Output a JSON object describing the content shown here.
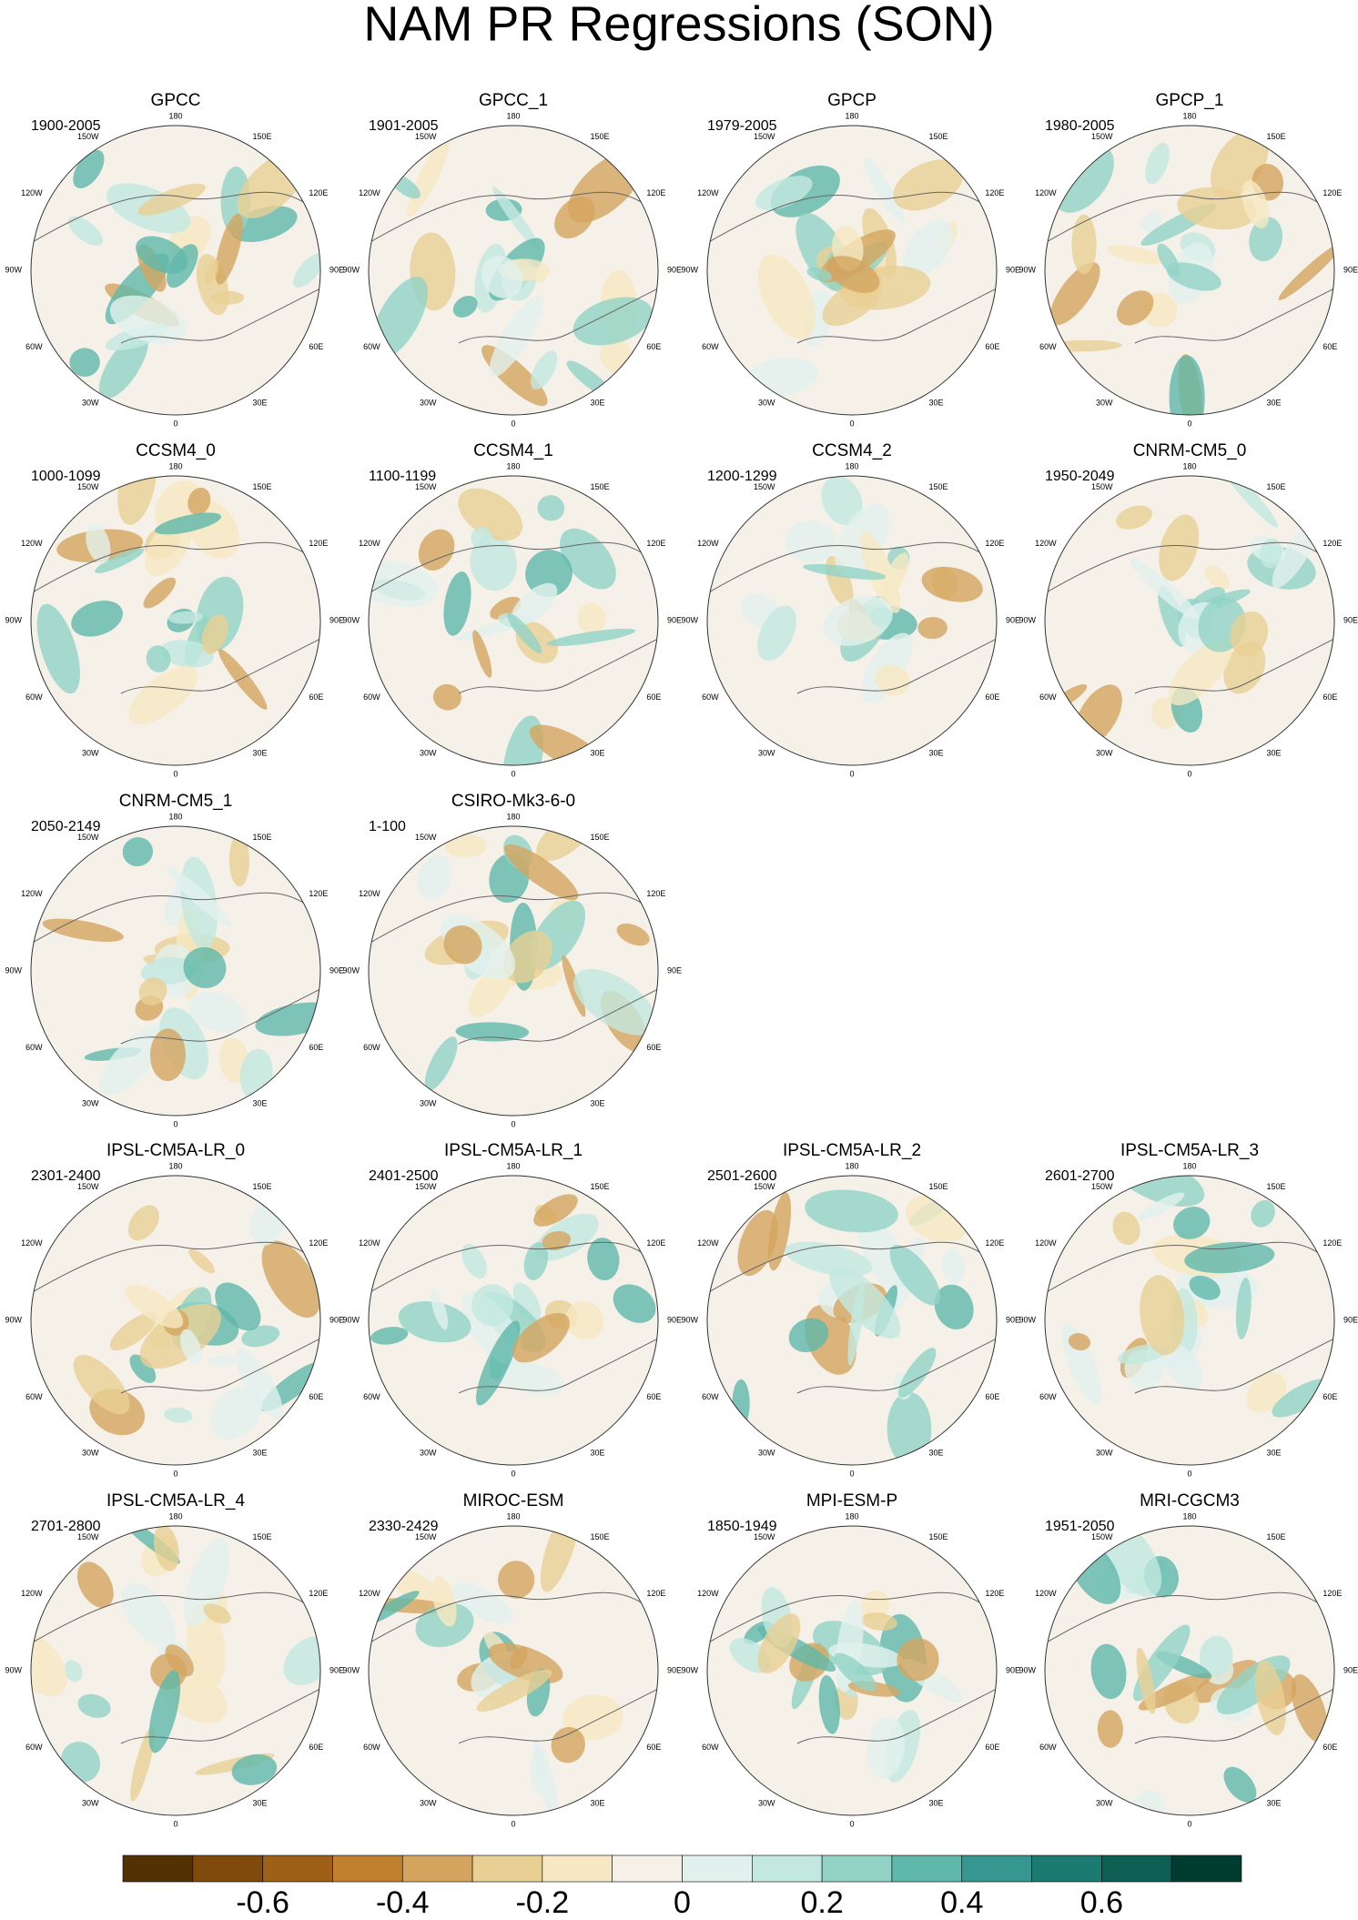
{
  "title": "NAM PR Regressions (SON)",
  "panels": [
    {
      "title": "GPCC",
      "period": "1900-2005"
    },
    {
      "title": "GPCC_1",
      "period": "1901-2005"
    },
    {
      "title": "GPCP",
      "period": "1979-2005"
    },
    {
      "title": "GPCP_1",
      "period": "1980-2005"
    },
    {
      "title": "CCSM4_0",
      "period": "1000-1099"
    },
    {
      "title": "CCSM4_1",
      "period": "1100-1199"
    },
    {
      "title": "CCSM4_2",
      "period": "1200-1299"
    },
    {
      "title": "CNRM-CM5_0",
      "period": "1950-2049"
    },
    {
      "title": "CNRM-CM5_1",
      "period": "2050-2149"
    },
    {
      "title": "CSIRO-Mk3-6-0",
      "period": "1-100"
    },
    {
      "title": "IPSL-CM5A-LR_0",
      "period": "2301-2400"
    },
    {
      "title": "IPSL-CM5A-LR_1",
      "period": "2401-2500"
    },
    {
      "title": "IPSL-CM5A-LR_2",
      "period": "2501-2600"
    },
    {
      "title": "IPSL-CM5A-LR_3",
      "period": "2601-2700"
    },
    {
      "title": "IPSL-CM5A-LR_4",
      "period": "2701-2800"
    },
    {
      "title": "MIROC-ESM",
      "period": "2330-2429"
    },
    {
      "title": "MPI-ESM-P",
      "period": "1850-1949"
    },
    {
      "title": "MRI-CGCM3",
      "period": "1951-2050"
    }
  ],
  "map_labels": [
    "180",
    "150E",
    "120E",
    "90E",
    "60E",
    "30E",
    "0",
    "30W",
    "60W",
    "90W",
    "120W",
    "150W"
  ],
  "colorbar": {
    "colors": [
      "#543005",
      "#7f4a0c",
      "#9e5f16",
      "#bf812d",
      "#d4a55f",
      "#e8cf94",
      "#f6e8c3",
      "#f5f1e8",
      "#e2f1ed",
      "#c3e8e0",
      "#92d3c6",
      "#5fb8aa",
      "#35978f",
      "#1b7b71",
      "#0d5f53",
      "#003c30"
    ],
    "lim": [
      -0.8,
      0.8
    ],
    "ticks": [
      -0.6,
      -0.4,
      -0.2,
      0,
      0.2,
      0.4,
      0.6
    ]
  }
}
